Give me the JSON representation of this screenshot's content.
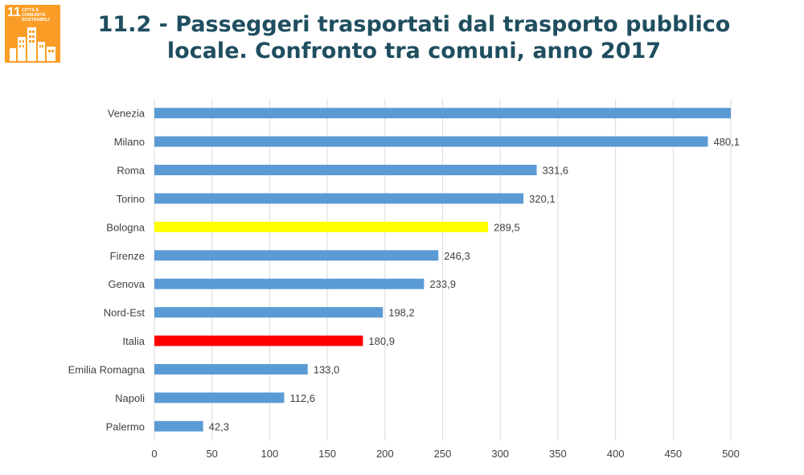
{
  "logo": {
    "number": "11",
    "text": "CITTÀ E COMUNITÀ SOSTENIBILI",
    "color": "#f99d26",
    "icon": "city-buildings-icon"
  },
  "title": {
    "line1": "11.2 - Passeggeri trasportati dal trasporto pubblico",
    "line2": "locale. Confronto tra comuni, anno 2017"
  },
  "chart_data": {
    "type": "bar",
    "orientation": "horizontal",
    "categories": [
      "Venezia",
      "Milano",
      "Roma",
      "Torino",
      "Bologna",
      "Firenze",
      "Genova",
      "Nord-Est",
      "Italia",
      "Emilia Romagna",
      "Napoli",
      "Palermo"
    ],
    "values": [
      501,
      480.1,
      331.6,
      320.1,
      289.5,
      246.3,
      233.9,
      198.2,
      180.9,
      133.0,
      112.6,
      42.3
    ],
    "data_labels": [
      "",
      "480,1",
      "331,6",
      "320,1",
      "289,5",
      "246,3",
      "233,9",
      "198,2",
      "180,9",
      "133,0",
      "112,6",
      "42,3"
    ],
    "colors": [
      "#5b9bd5",
      "#5b9bd5",
      "#5b9bd5",
      "#5b9bd5",
      "#ffff00",
      "#5b9bd5",
      "#5b9bd5",
      "#5b9bd5",
      "#ff0000",
      "#5b9bd5",
      "#5b9bd5",
      "#5b9bd5"
    ],
    "xlim": [
      0,
      500
    ],
    "xticks": [
      0,
      50,
      100,
      150,
      200,
      250,
      300,
      350,
      400,
      450,
      500
    ],
    "grid": true,
    "legend": "none"
  }
}
